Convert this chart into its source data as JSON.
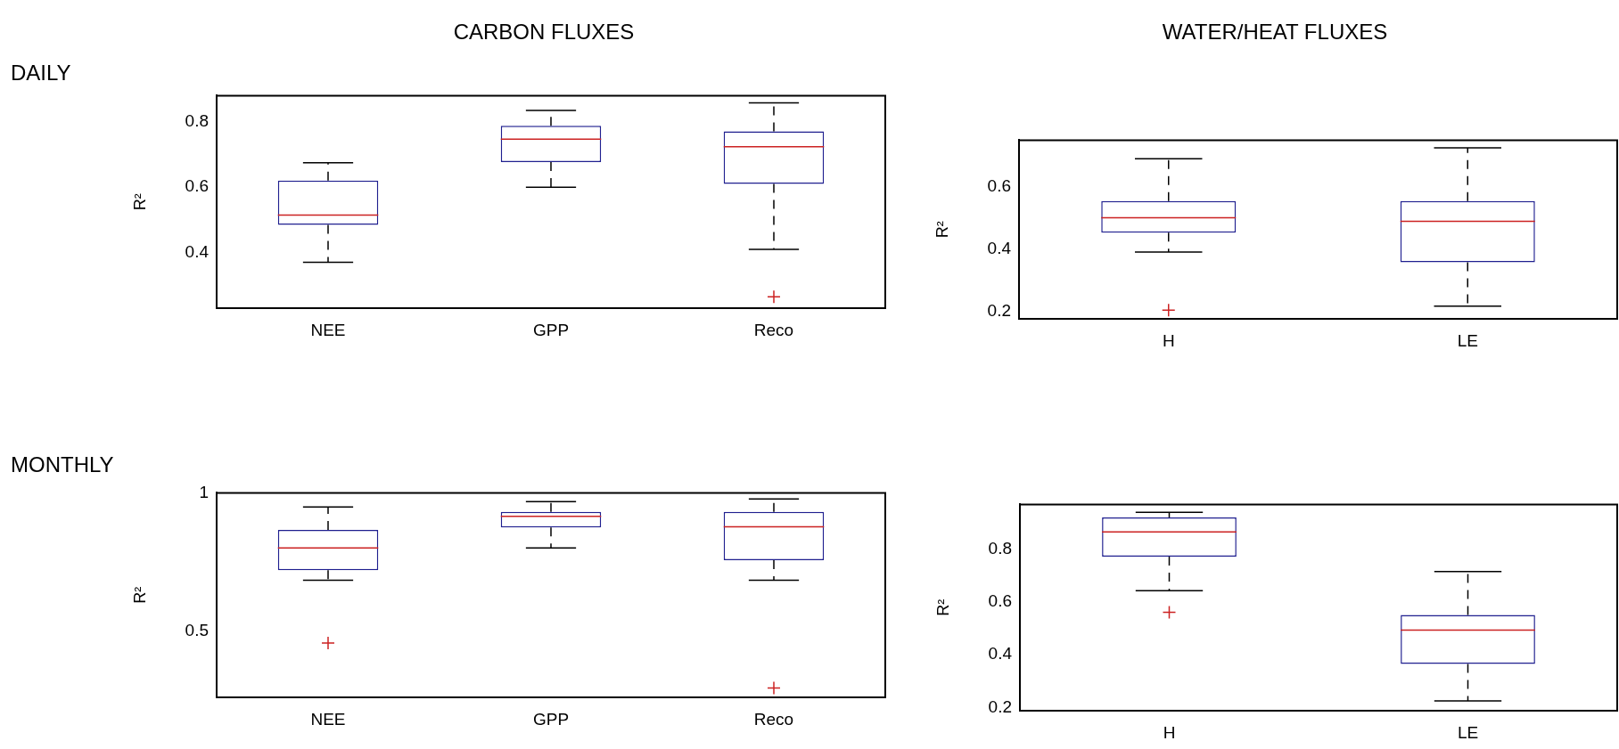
{
  "chart_data": [
    {
      "type": "box",
      "title": "CARBON FLUXES",
      "annotations": [
        "DAILY"
      ],
      "ylabel": "R²",
      "categories": [
        "NEE",
        "GPP",
        "Reco"
      ],
      "ylim": [
        0.23,
        0.88
      ],
      "yticks": [
        0.4,
        0.6,
        0.8
      ],
      "grid": false,
      "legend": false,
      "series": [
        {
          "color": "#1f1f8f",
          "boxes": [
            {
              "low": 0.37,
              "q1": 0.485,
              "median": 0.515,
              "q3": 0.62,
              "high": 0.675
            },
            {
              "low": 0.6,
              "q1": 0.677,
              "median": 0.747,
              "q3": 0.788,
              "high": 0.835
            },
            {
              "low": 0.41,
              "q1": 0.61,
              "median": 0.724,
              "q3": 0.771,
              "high": 0.858,
              "outliers": [
                0.265
              ]
            }
          ]
        }
      ]
    },
    {
      "type": "box",
      "title": "WATER/HEAT FLUXES",
      "ylabel": "R²",
      "categories": [
        "H",
        "LE"
      ],
      "ylim": [
        0.175,
        0.75
      ],
      "yticks": [
        0.2,
        0.4,
        0.6
      ],
      "grid": false,
      "legend": false,
      "series": [
        {
          "color": "#1f1f8f",
          "boxes": [
            {
              "low": 0.39,
              "q1": 0.452,
              "median": 0.5,
              "q3": 0.554,
              "high": 0.69,
              "outliers": [
                0.203
              ]
            },
            {
              "low": 0.216,
              "q1": 0.357,
              "median": 0.489,
              "q3": 0.554,
              "high": 0.725
            }
          ]
        }
      ]
    },
    {
      "type": "box",
      "annotations": [
        "MONTHLY"
      ],
      "ylabel": "R²",
      "categories": [
        "NEE",
        "GPP",
        "Reco"
      ],
      "ylim": [
        0.26,
        1.0
      ],
      "yticks": [
        0.5,
        1
      ],
      "grid": false,
      "legend": false,
      "series": [
        {
          "color": "#1f1f8f",
          "boxes": [
            {
              "low": 0.684,
              "q1": 0.72,
              "median": 0.801,
              "q3": 0.866,
              "high": 0.949,
              "outliers": [
                0.457
              ]
            },
            {
              "low": 0.801,
              "q1": 0.875,
              "median": 0.915,
              "q3": 0.931,
              "high": 0.968
            },
            {
              "low": 0.684,
              "q1": 0.756,
              "median": 0.877,
              "q3": 0.931,
              "high": 0.978,
              "outliers": [
                0.294
              ]
            }
          ]
        }
      ]
    },
    {
      "type": "box",
      "ylabel": "R²",
      "categories": [
        "H",
        "LE"
      ],
      "ylim": [
        0.188,
        0.968
      ],
      "yticks": [
        0.2,
        0.4,
        0.6,
        0.8
      ],
      "grid": false,
      "legend": false,
      "series": [
        {
          "color": "#1f1f8f",
          "boxes": [
            {
              "low": 0.642,
              "q1": 0.771,
              "median": 0.864,
              "q3": 0.919,
              "high": 0.938,
              "outliers": [
                0.56
              ]
            },
            {
              "low": 0.225,
              "q1": 0.365,
              "median": 0.493,
              "q3": 0.55,
              "high": 0.714
            }
          ]
        }
      ]
    }
  ]
}
